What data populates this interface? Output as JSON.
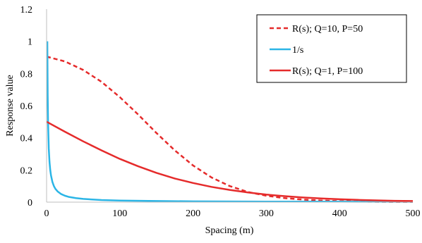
{
  "chart_data": {
    "type": "line",
    "xlabel": "Spacing  (m)",
    "ylabel": "Response value",
    "xlim": [
      0,
      500
    ],
    "ylim": [
      0,
      1.2
    ],
    "x_ticks": [
      "0",
      "100",
      "200",
      "300",
      "400",
      "500"
    ],
    "y_ticks": [
      "0",
      "0.2",
      "0.4",
      "0.6",
      "0.8",
      "1",
      "1.2"
    ],
    "grid": false,
    "legend": "top-right",
    "series": [
      {
        "name": "R(s); Q=10, P=50",
        "color": "#e52b2b",
        "dash": "dashed",
        "x": [
          0,
          25,
          50,
          75,
          100,
          125,
          150,
          175,
          200,
          225,
          250,
          275,
          300,
          325,
          350,
          375,
          400,
          425,
          450,
          475,
          500
        ],
        "y": [
          0.905,
          0.875,
          0.822,
          0.748,
          0.653,
          0.545,
          0.43,
          0.322,
          0.228,
          0.154,
          0.1,
          0.063,
          0.04,
          0.025,
          0.016,
          0.01,
          0.006,
          0.004,
          0.002,
          0.001,
          0.001
        ]
      },
      {
        "name": "1/s",
        "color": "#2bb5e6",
        "dash": "solid",
        "x": [
          1,
          1.5,
          2,
          3,
          4,
          5,
          6,
          8,
          10,
          12,
          15,
          20,
          25,
          30,
          40,
          50,
          75,
          100,
          150,
          200,
          300,
          400,
          500
        ],
        "y": [
          1.0,
          0.667,
          0.5,
          0.333,
          0.25,
          0.2,
          0.167,
          0.125,
          0.1,
          0.083,
          0.067,
          0.05,
          0.04,
          0.033,
          0.025,
          0.02,
          0.013,
          0.01,
          0.007,
          0.005,
          0.003,
          0.003,
          0.002
        ]
      },
      {
        "name": "R(s); Q=1, P=100",
        "color": "#e52b2b",
        "dash": "solid",
        "x": [
          0,
          25,
          50,
          75,
          100,
          125,
          150,
          175,
          200,
          225,
          250,
          275,
          300,
          325,
          350,
          375,
          400,
          425,
          450,
          475,
          500
        ],
        "y": [
          0.5,
          0.438,
          0.378,
          0.322,
          0.269,
          0.223,
          0.182,
          0.147,
          0.119,
          0.095,
          0.076,
          0.06,
          0.047,
          0.037,
          0.029,
          0.023,
          0.018,
          0.014,
          0.011,
          0.008,
          0.007
        ]
      }
    ]
  }
}
